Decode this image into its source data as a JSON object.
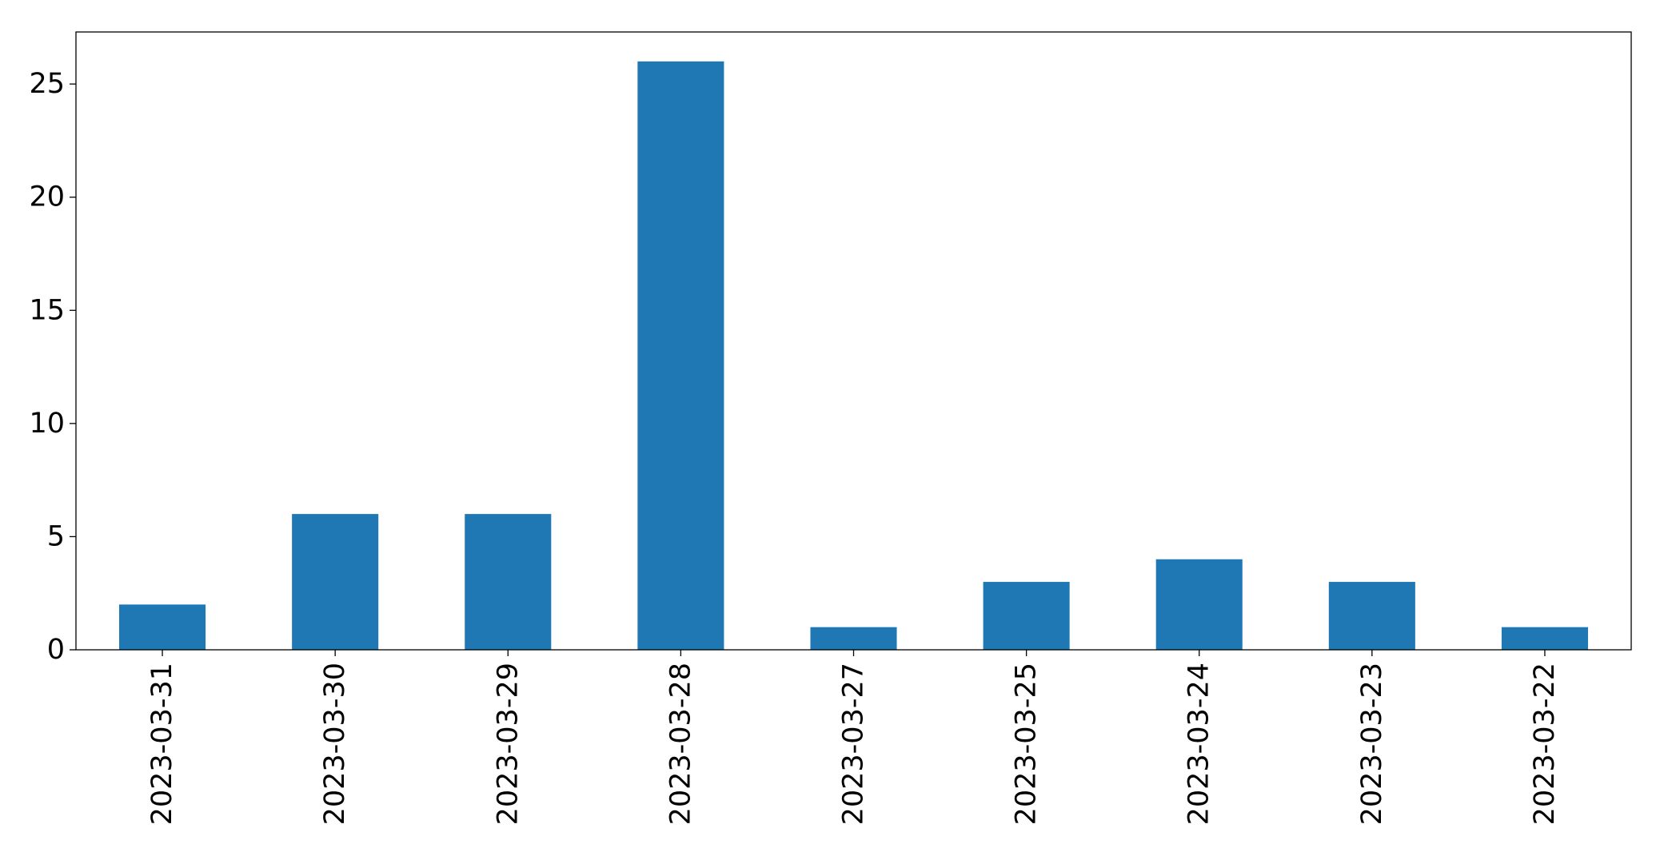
{
  "chart_data": {
    "type": "bar",
    "title": "",
    "xlabel": "",
    "ylabel": "",
    "categories": [
      "2023-03-31",
      "2023-03-30",
      "2023-03-29",
      "2023-03-28",
      "2023-03-27",
      "2023-03-25",
      "2023-03-24",
      "2023-03-23",
      "2023-03-22"
    ],
    "values": [
      2,
      6,
      6,
      26,
      1,
      3,
      4,
      3,
      1
    ],
    "ylim": [
      0,
      27.3
    ],
    "yticks": [
      0,
      5,
      10,
      15,
      20,
      25
    ],
    "grid": false,
    "legend": "none",
    "bar_color": "#1f77b4",
    "x_tick_rotation_deg": 90
  }
}
